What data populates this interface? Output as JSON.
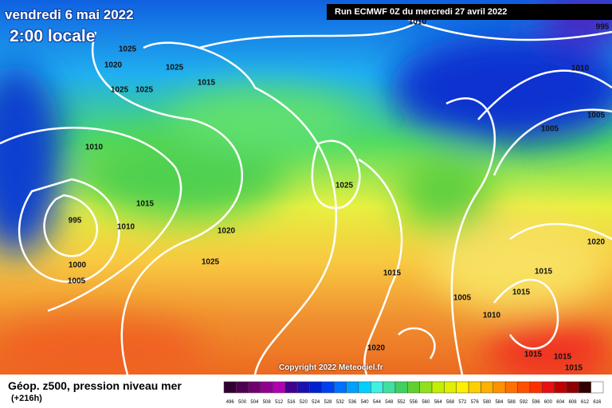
{
  "header": {
    "date": "vendredi 6 mai 2022",
    "time": "2:00 locale",
    "run": "Run ECMWF 0Z du mercredi 27 avril 2022"
  },
  "isobar_labels": [
    "1025",
    "1020",
    "1025",
    "1025",
    "1025",
    "1015",
    "1010",
    "1015",
    "1010",
    "995",
    "1020",
    "1000",
    "1005",
    "1025",
    "1025",
    "1015",
    "1005",
    "1015",
    "1010",
    "1020",
    "1015",
    "1015",
    "1015",
    "1015",
    "1020",
    "1005",
    "1005",
    "1010",
    "995",
    "1010"
  ],
  "footer": {
    "title": "Géop. z500, pression niveau mer",
    "lead": "(+216h)",
    "copyright": "Copyright 2022 Meteociel.fr"
  },
  "colorbar": {
    "labels": [
      496,
      500,
      504,
      508,
      512,
      516,
      520,
      524,
      528,
      532,
      536,
      540,
      544,
      548,
      552,
      556,
      560,
      564,
      568,
      572,
      576,
      580,
      584,
      588,
      592,
      596,
      600,
      604,
      608,
      612,
      616
    ]
  }
}
